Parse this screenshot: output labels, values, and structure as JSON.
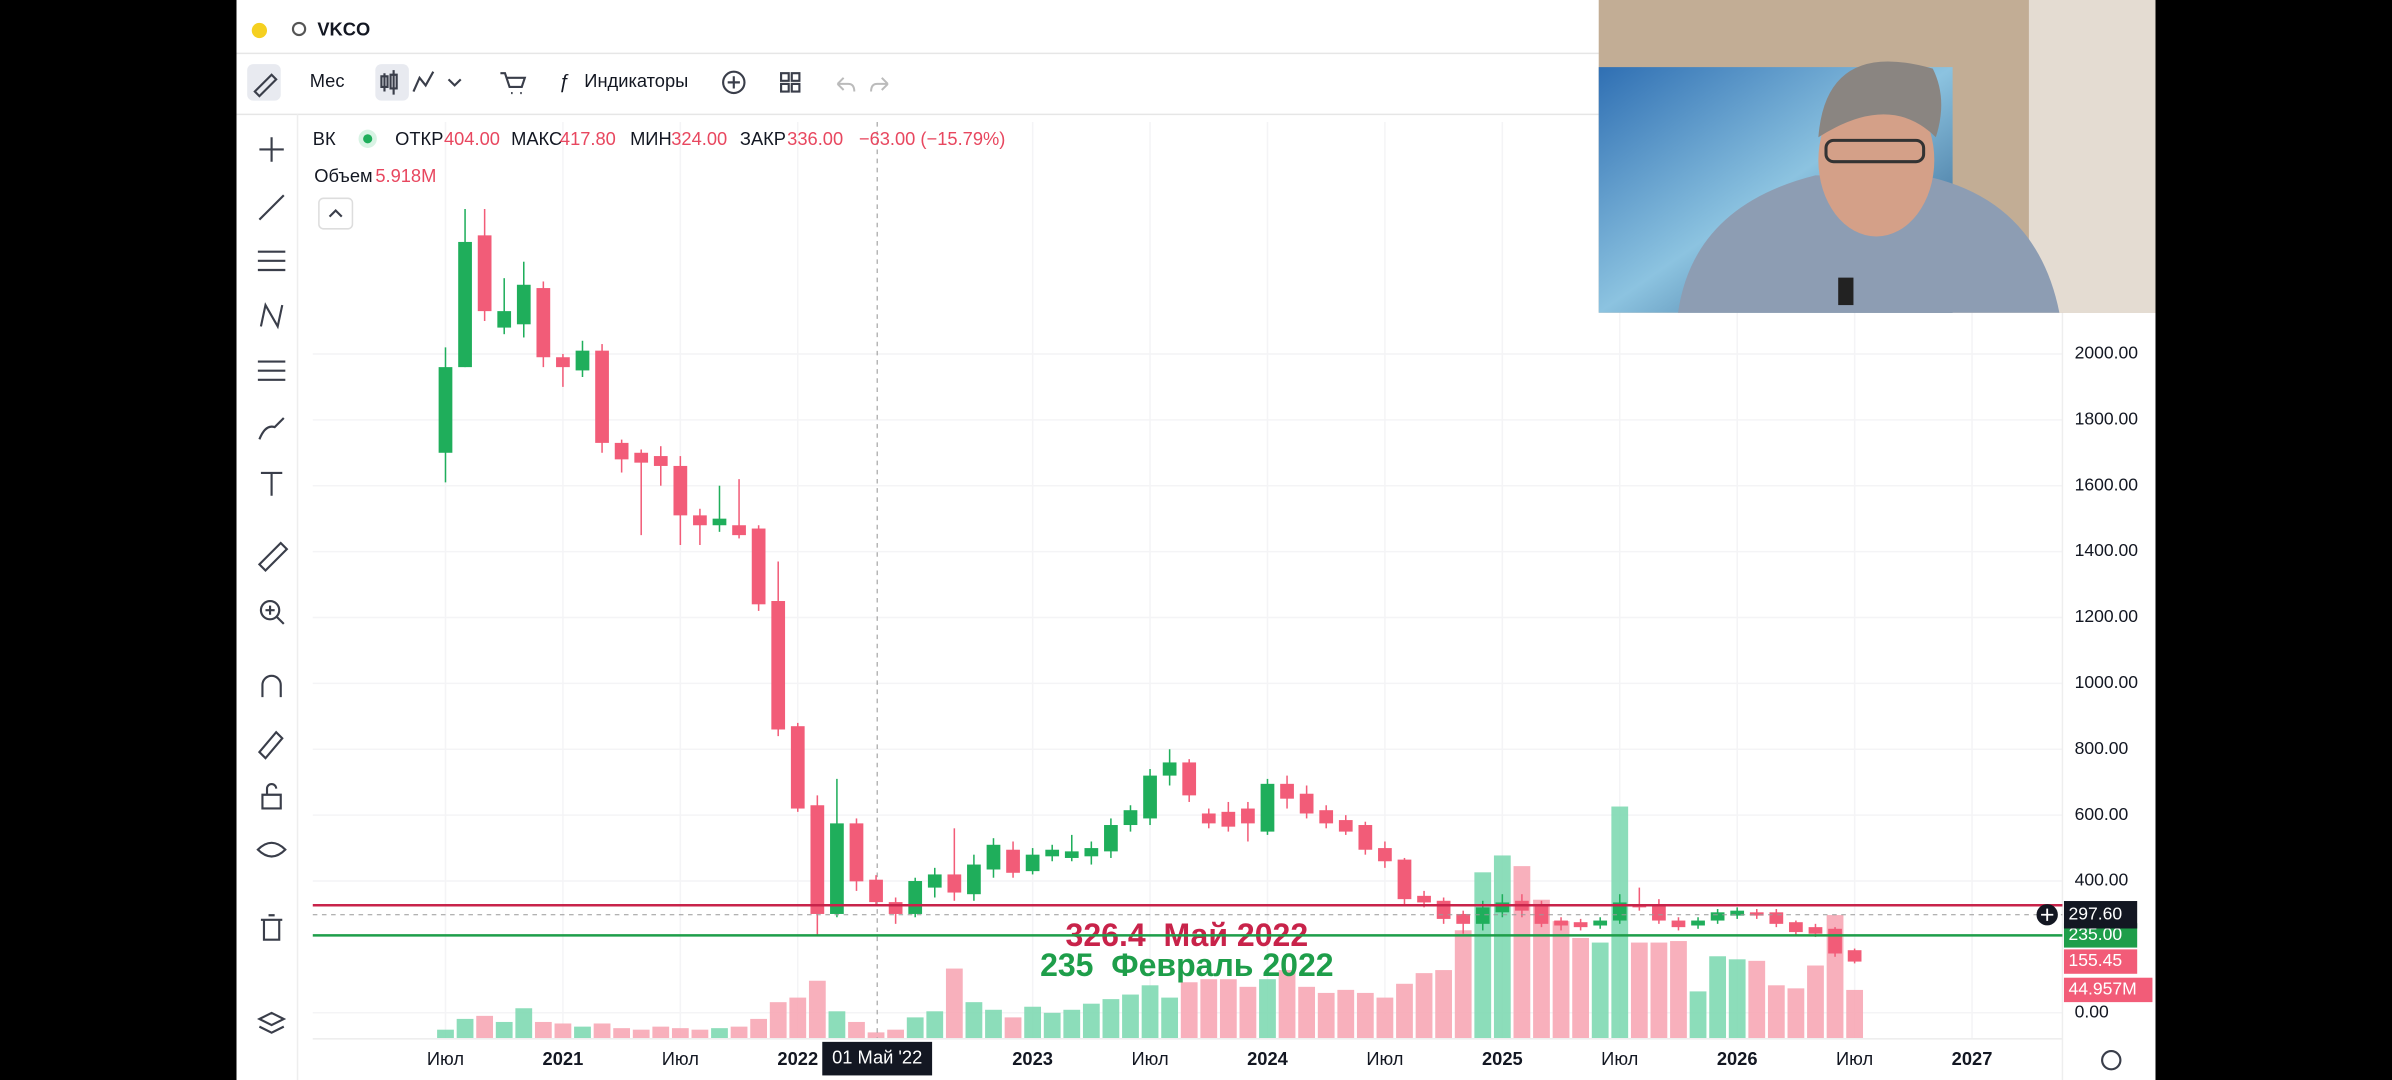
{
  "toolbar": {
    "symbol": "VKCO",
    "interval": "Мес",
    "indicators": "Индикаторы"
  },
  "chart_data": {
    "type": "candlestick",
    "legend": {
      "symbol": "ВК",
      "items": [
        {
          "name": "ОТКР",
          "value": "404.00"
        },
        {
          "name": "МАКС",
          "value": "417.80"
        },
        {
          "name": "МИН",
          "value": "324.00"
        },
        {
          "name": "ЗАКР",
          "value": "336.00"
        }
      ],
      "change": "−63.00 (−15.79%)",
      "volume_name": "Объем",
      "volume": "5.918M"
    },
    "categories": [
      "Июл",
      null,
      null,
      null,
      null,
      null,
      "2021",
      null,
      null,
      null,
      null,
      null,
      "Июл",
      null,
      null,
      null,
      null,
      null,
      "2022",
      null,
      null,
      null,
      null,
      null,
      null,
      null,
      null,
      null,
      null,
      null,
      "2023",
      null,
      null,
      null,
      null,
      null,
      "Июл",
      null,
      null,
      null,
      null,
      null,
      "2024",
      null,
      null,
      null,
      null,
      null,
      "Июл",
      null,
      null,
      null,
      null,
      null,
      "2025",
      null,
      null,
      null,
      null,
      null,
      "Июл",
      null,
      null,
      null,
      null,
      null,
      "2026",
      null,
      null,
      null,
      null,
      null,
      "Июл",
      null,
      null,
      null,
      null,
      null,
      "2027",
      null
    ],
    "open": [
      1700,
      1960,
      2360,
      2080,
      2090,
      2200,
      1990,
      1950,
      2010,
      1730,
      1700,
      1690,
      1660,
      1510,
      1480,
      1480,
      1470,
      1250,
      870,
      630,
      300,
      575,
      404,
      336,
      300,
      380,
      420,
      360,
      435,
      495,
      430,
      475,
      470,
      475,
      490,
      570,
      590,
      720,
      760,
      605,
      610,
      620,
      550,
      695,
      665,
      615,
      585,
      570,
      500,
      465,
      355,
      340,
      300,
      270,
      305,
      340,
      325,
      280,
      275,
      265,
      280,
      330,
      330,
      280,
      265,
      280,
      295,
      305,
      305,
      275,
      260,
      255,
      190,
      null,
      null,
      null,
      null,
      null,
      null,
      null
    ],
    "high": [
      2020,
      2440,
      2440,
      2230,
      2280,
      2220,
      2000,
      2040,
      2030,
      1740,
      1710,
      1720,
      1690,
      1530,
      1600,
      1620,
      1480,
      1370,
      880,
      660,
      710,
      590,
      417.8,
      350,
      410,
      440,
      560,
      480,
      530,
      520,
      500,
      510,
      540,
      520,
      590,
      630,
      740,
      800,
      770,
      620,
      640,
      640,
      710,
      720,
      690,
      630,
      600,
      580,
      520,
      470,
      370,
      350,
      310,
      340,
      360,
      360,
      340,
      290,
      285,
      290,
      360,
      380,
      345,
      290,
      290,
      315,
      320,
      315,
      315,
      280,
      270,
      260,
      195,
      null,
      null,
      null,
      null,
      null,
      null,
      null
    ],
    "low": [
      1610,
      1960,
      2100,
      2060,
      2050,
      1960,
      1900,
      1930,
      1700,
      1640,
      1450,
      1600,
      1420,
      1420,
      1460,
      1440,
      1220,
      840,
      610,
      235,
      290,
      370,
      324,
      270,
      290,
      350,
      340,
      340,
      410,
      410,
      420,
      460,
      460,
      450,
      470,
      550,
      570,
      690,
      640,
      560,
      550,
      520,
      540,
      620,
      590,
      560,
      540,
      480,
      440,
      330,
      320,
      270,
      240,
      250,
      290,
      290,
      260,
      250,
      250,
      255,
      270,
      310,
      270,
      250,
      255,
      270,
      285,
      285,
      260,
      235,
      230,
      170,
      150,
      null,
      null,
      null,
      null,
      null,
      null,
      null
    ],
    "close": [
      1960,
      2340,
      2130,
      2130,
      2210,
      1990,
      1960,
      2010,
      1730,
      1680,
      1670,
      1660,
      1510,
      1480,
      1500,
      1450,
      1240,
      860,
      620,
      300,
      575,
      399,
      336,
      300,
      400,
      420,
      365,
      450,
      510,
      425,
      480,
      495,
      490,
      500,
      570,
      615,
      720,
      760,
      660,
      575,
      565,
      575,
      695,
      650,
      605,
      575,
      550,
      495,
      460,
      345,
      335,
      285,
      270,
      320,
      335,
      310,
      270,
      265,
      260,
      280,
      335,
      320,
      280,
      260,
      280,
      305,
      310,
      295,
      270,
      245,
      240,
      180,
      155.45,
      null,
      null,
      null,
      null,
      null,
      null,
      null
    ],
    "volume": [
      8.4,
      18.3,
      21.1,
      15.5,
      28.1,
      15.5,
      14.1,
      11.2,
      14.1,
      9.8,
      8.4,
      11.2,
      9.8,
      8.4,
      9.8,
      11.2,
      18.3,
      33.7,
      37.9,
      53.4,
      25.3,
      15.5,
      5.918,
      8.4,
      19.7,
      25.3,
      64.6,
      33.7,
      26.7,
      19.7,
      29.5,
      23.9,
      26.7,
      32.3,
      36.5,
      40.7,
      49.2,
      37.9,
      52,
      54.8,
      54.8,
      47.8,
      54.8,
      63.2,
      47.8,
      42.2,
      45,
      42.2,
      37.9,
      50.6,
      60.4,
      63.2,
      99.8,
      153.1,
      168.6,
      158.8,
      127.9,
      108.2,
      92.7,
      88.5,
      213.6,
      88.5,
      88.5,
      89.9,
      43.6,
      75.9,
      73.1,
      71.7,
      49.2,
      46.4,
      67.4,
      113.8,
      44.957,
      null,
      null,
      null,
      null,
      null,
      null,
      null
    ],
    "up_color": "#1fae5b",
    "down_color": "#f25c78",
    "up_volume_color": "#7fd9b3",
    "down_volume_color": "#f7a7b5",
    "ylim": [
      -79,
      2704
    ],
    "yticks": [
      {
        "value": 0,
        "label": "0.00"
      },
      {
        "value": 400,
        "label": "400.00"
      },
      {
        "value": 600,
        "label": "600.00"
      },
      {
        "value": 800,
        "label": "800.00"
      },
      {
        "value": 1000,
        "label": "1000.00"
      },
      {
        "value": 1200,
        "label": "1200.00"
      },
      {
        "value": 1400,
        "label": "1400.00"
      },
      {
        "value": 1600,
        "label": "1600.00"
      },
      {
        "value": 1800,
        "label": "1800.00"
      },
      {
        "value": 2000,
        "label": "2000.00"
      }
    ],
    "y2lim": [
      0,
      843
    ],
    "grid": true,
    "hlines": [
      {
        "value": 326.4,
        "color": "#c8234a",
        "label": "326.4  Май 2022"
      },
      {
        "value": 235,
        "color": "#1e9e4a",
        "label": "235  Февраль 2022",
        "price_label": "235.00"
      }
    ],
    "crosshair": {
      "label": "01 Май '22",
      "price": {
        "value": 297.6,
        "label": "297.60"
      }
    },
    "last_price_label": "155.45",
    "last_volume_label": "44.957M"
  }
}
